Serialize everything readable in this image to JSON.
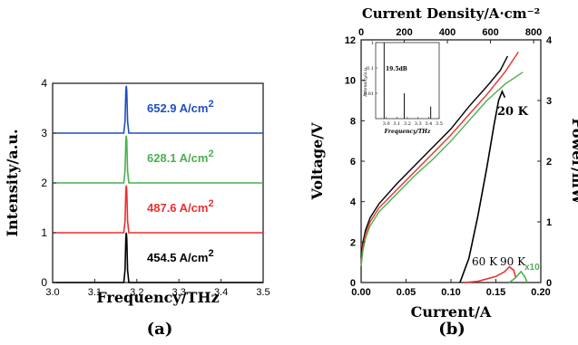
{
  "chart_data": [
    {
      "panel_label": "(a)",
      "type": "line",
      "xlabel": "Frequency/THz",
      "ylabel": "Intensity/a.u.",
      "xlim": [
        3.0,
        3.5
      ],
      "ylim": [
        0,
        4
      ],
      "xticks": [
        "3.0",
        "3.1",
        "3.2",
        "3.3",
        "3.4",
        "3.5"
      ],
      "yticks": [
        "0",
        "1",
        "2",
        "3",
        "4"
      ],
      "series": [
        {
          "name": "454.5 A/cm2",
          "label_main": "454.5 A/cm",
          "label_sup": "2",
          "color": "#000000",
          "baseline": 0,
          "peak_x": 3.175,
          "peak_height": 1.0
        },
        {
          "name": "487.6 A/cm2",
          "label_main": "487.6 A/cm",
          "label_sup": "2",
          "color": "#e8312f",
          "baseline": 1,
          "peak_x": 3.175,
          "peak_height": 0.95
        },
        {
          "name": "628.1 A/cm2",
          "label_main": "628.1 A/cm",
          "label_sup": "2",
          "color": "#4caf50",
          "baseline": 2,
          "peak_x": 3.175,
          "peak_height": 0.95
        },
        {
          "name": "652.9 A/cm2",
          "label_main": "652.9 A/cm",
          "label_sup": "2",
          "color": "#1f4fbf",
          "baseline": 3,
          "peak_x": 3.175,
          "peak_height": 0.95
        }
      ]
    },
    {
      "panel_label": "(b)",
      "type": "line",
      "xlabel": "Current/A",
      "ylabel": "Voltage/V",
      "y2label": "Power/mW",
      "top_xlabel": "Current Density/A·cm⁻²",
      "xlim": [
        0,
        0.2
      ],
      "ylim": [
        0,
        12
      ],
      "y2lim": [
        0,
        4
      ],
      "top_xlim": [
        0,
        800
      ],
      "xticks": [
        "0.00",
        "0.05",
        "0.10",
        "0.15",
        "0.20"
      ],
      "yticks": [
        "0",
        "2",
        "4",
        "6",
        "8",
        "10",
        "12"
      ],
      "y2ticks": [
        "0",
        "1",
        "2",
        "3",
        "4"
      ],
      "top_xticks": [
        "0",
        "200",
        "400",
        "600",
        "800"
      ],
      "annotations": [
        "20 K",
        "60 K",
        "90 K",
        "x10"
      ],
      "voltage_series": [
        {
          "temp": "20 K",
          "color": "#000000",
          "x": [
            0,
            0.002,
            0.005,
            0.01,
            0.02,
            0.04,
            0.06,
            0.08,
            0.1,
            0.12,
            0.14,
            0.155,
            0.163
          ],
          "y": [
            1.2,
            2.0,
            2.6,
            3.2,
            3.9,
            4.9,
            5.8,
            6.7,
            7.6,
            8.7,
            9.7,
            10.5,
            11.2
          ]
        },
        {
          "temp": "60 K",
          "color": "#e8312f",
          "x": [
            0,
            0.002,
            0.005,
            0.01,
            0.02,
            0.04,
            0.06,
            0.08,
            0.1,
            0.12,
            0.14,
            0.16,
            0.175
          ],
          "y": [
            1.0,
            1.8,
            2.4,
            3.0,
            3.7,
            4.6,
            5.5,
            6.4,
            7.3,
            8.3,
            9.3,
            10.4,
            11.4
          ]
        },
        {
          "temp": "90 K",
          "color": "#4caf50",
          "x": [
            0,
            0.002,
            0.005,
            0.01,
            0.02,
            0.04,
            0.06,
            0.08,
            0.1,
            0.12,
            0.14,
            0.16,
            0.18
          ],
          "y": [
            0.8,
            1.6,
            2.2,
            2.8,
            3.5,
            4.4,
            5.3,
            6.1,
            7.0,
            8.0,
            9.0,
            9.8,
            10.4
          ]
        }
      ],
      "power_series": [
        {
          "temp": "20 K",
          "color": "#000000",
          "x": [
            0.11,
            0.12,
            0.13,
            0.14,
            0.148,
            0.153,
            0.157,
            0.16
          ],
          "y": [
            0.0,
            0.4,
            1.1,
            1.9,
            2.6,
            3.0,
            3.15,
            3.05
          ]
        },
        {
          "temp": "60 K",
          "color": "#e8312f",
          "x": [
            0.115,
            0.13,
            0.15,
            0.16,
            0.165,
            0.17,
            0.172
          ],
          "y": [
            0.0,
            0.02,
            0.1,
            0.18,
            0.26,
            0.2,
            0.08
          ]
        },
        {
          "temp": "90 K",
          "color": "#4caf50",
          "x": [
            0.165,
            0.172,
            0.178,
            0.182,
            0.185
          ],
          "y": [
            0.0,
            0.08,
            0.18,
            0.1,
            0.0
          ]
        }
      ],
      "inset": {
        "type": "line",
        "xlabel": "Frequency/THz",
        "ylabel": "Intensity/a.u.",
        "xlim": [
          2.9,
          3.5
        ],
        "ylim_log": [
          0.001,
          1
        ],
        "xticks": [
          "3.0",
          "3.1",
          "3.2",
          "3.3",
          "3.4",
          "3.5"
        ],
        "yticks": [
          "1",
          "0.1",
          "0.01"
        ],
        "annotation": "19.5dB",
        "peaks": [
          {
            "x": 2.98,
            "y": 1.0
          },
          {
            "x": 3.17,
            "y": 0.01
          },
          {
            "x": 3.42,
            "y": 0.003
          }
        ]
      }
    }
  ]
}
